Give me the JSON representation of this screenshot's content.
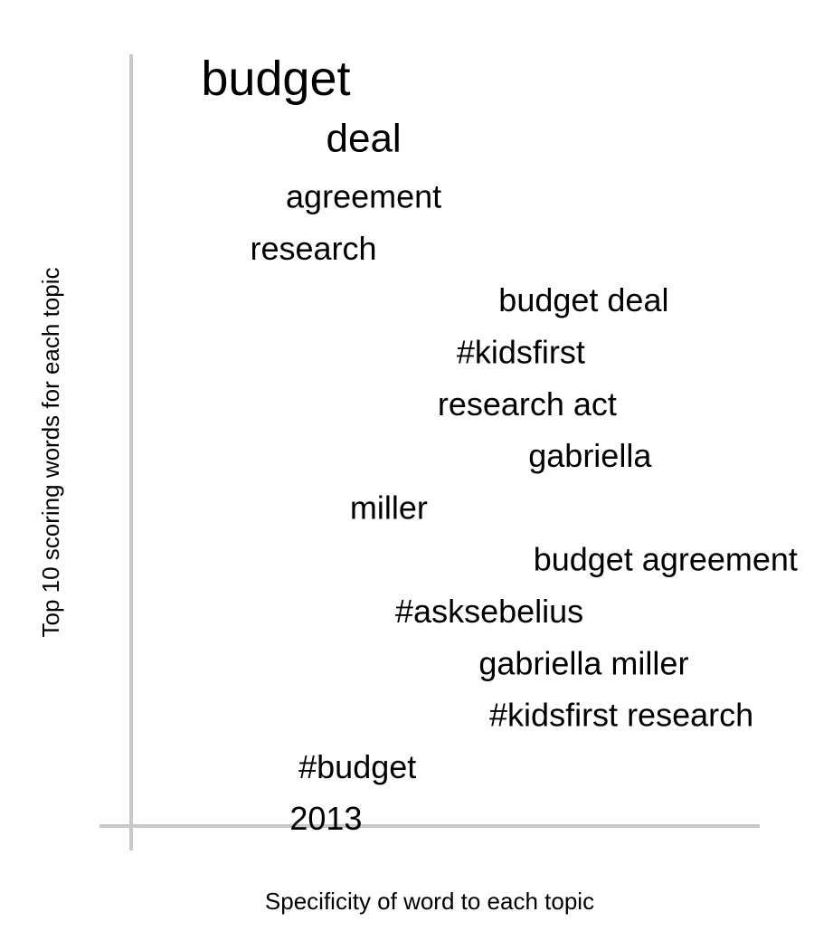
{
  "chart_data": {
    "type": "scatter",
    "title": "",
    "xlabel": "Specificity of word to each topic",
    "ylabel": "Top 10 scoring words for each topic",
    "axis_color": "#c8c8c8",
    "text_color": "#000000",
    "words": [
      {
        "text": "budget",
        "x": 0.23
      },
      {
        "text": "deal",
        "x": 0.37
      },
      {
        "text": "agreement",
        "x": 0.37
      },
      {
        "text": "research",
        "x": 0.29
      },
      {
        "text": "budget deal",
        "x": 0.72
      },
      {
        "text": "#kidsfirst",
        "x": 0.62
      },
      {
        "text": "research act",
        "x": 0.63
      },
      {
        "text": "gabriella",
        "x": 0.73
      },
      {
        "text": "miller",
        "x": 0.41
      },
      {
        "text": "budget agreement",
        "x": 0.85
      },
      {
        "text": "#asksebelius",
        "x": 0.57
      },
      {
        "text": "gabriella miller",
        "x": 0.72
      },
      {
        "text": "#kidsfirst research",
        "x": 0.78
      },
      {
        "text": "#budget",
        "x": 0.36
      },
      {
        "text": "2013",
        "x": 0.31
      }
    ]
  }
}
